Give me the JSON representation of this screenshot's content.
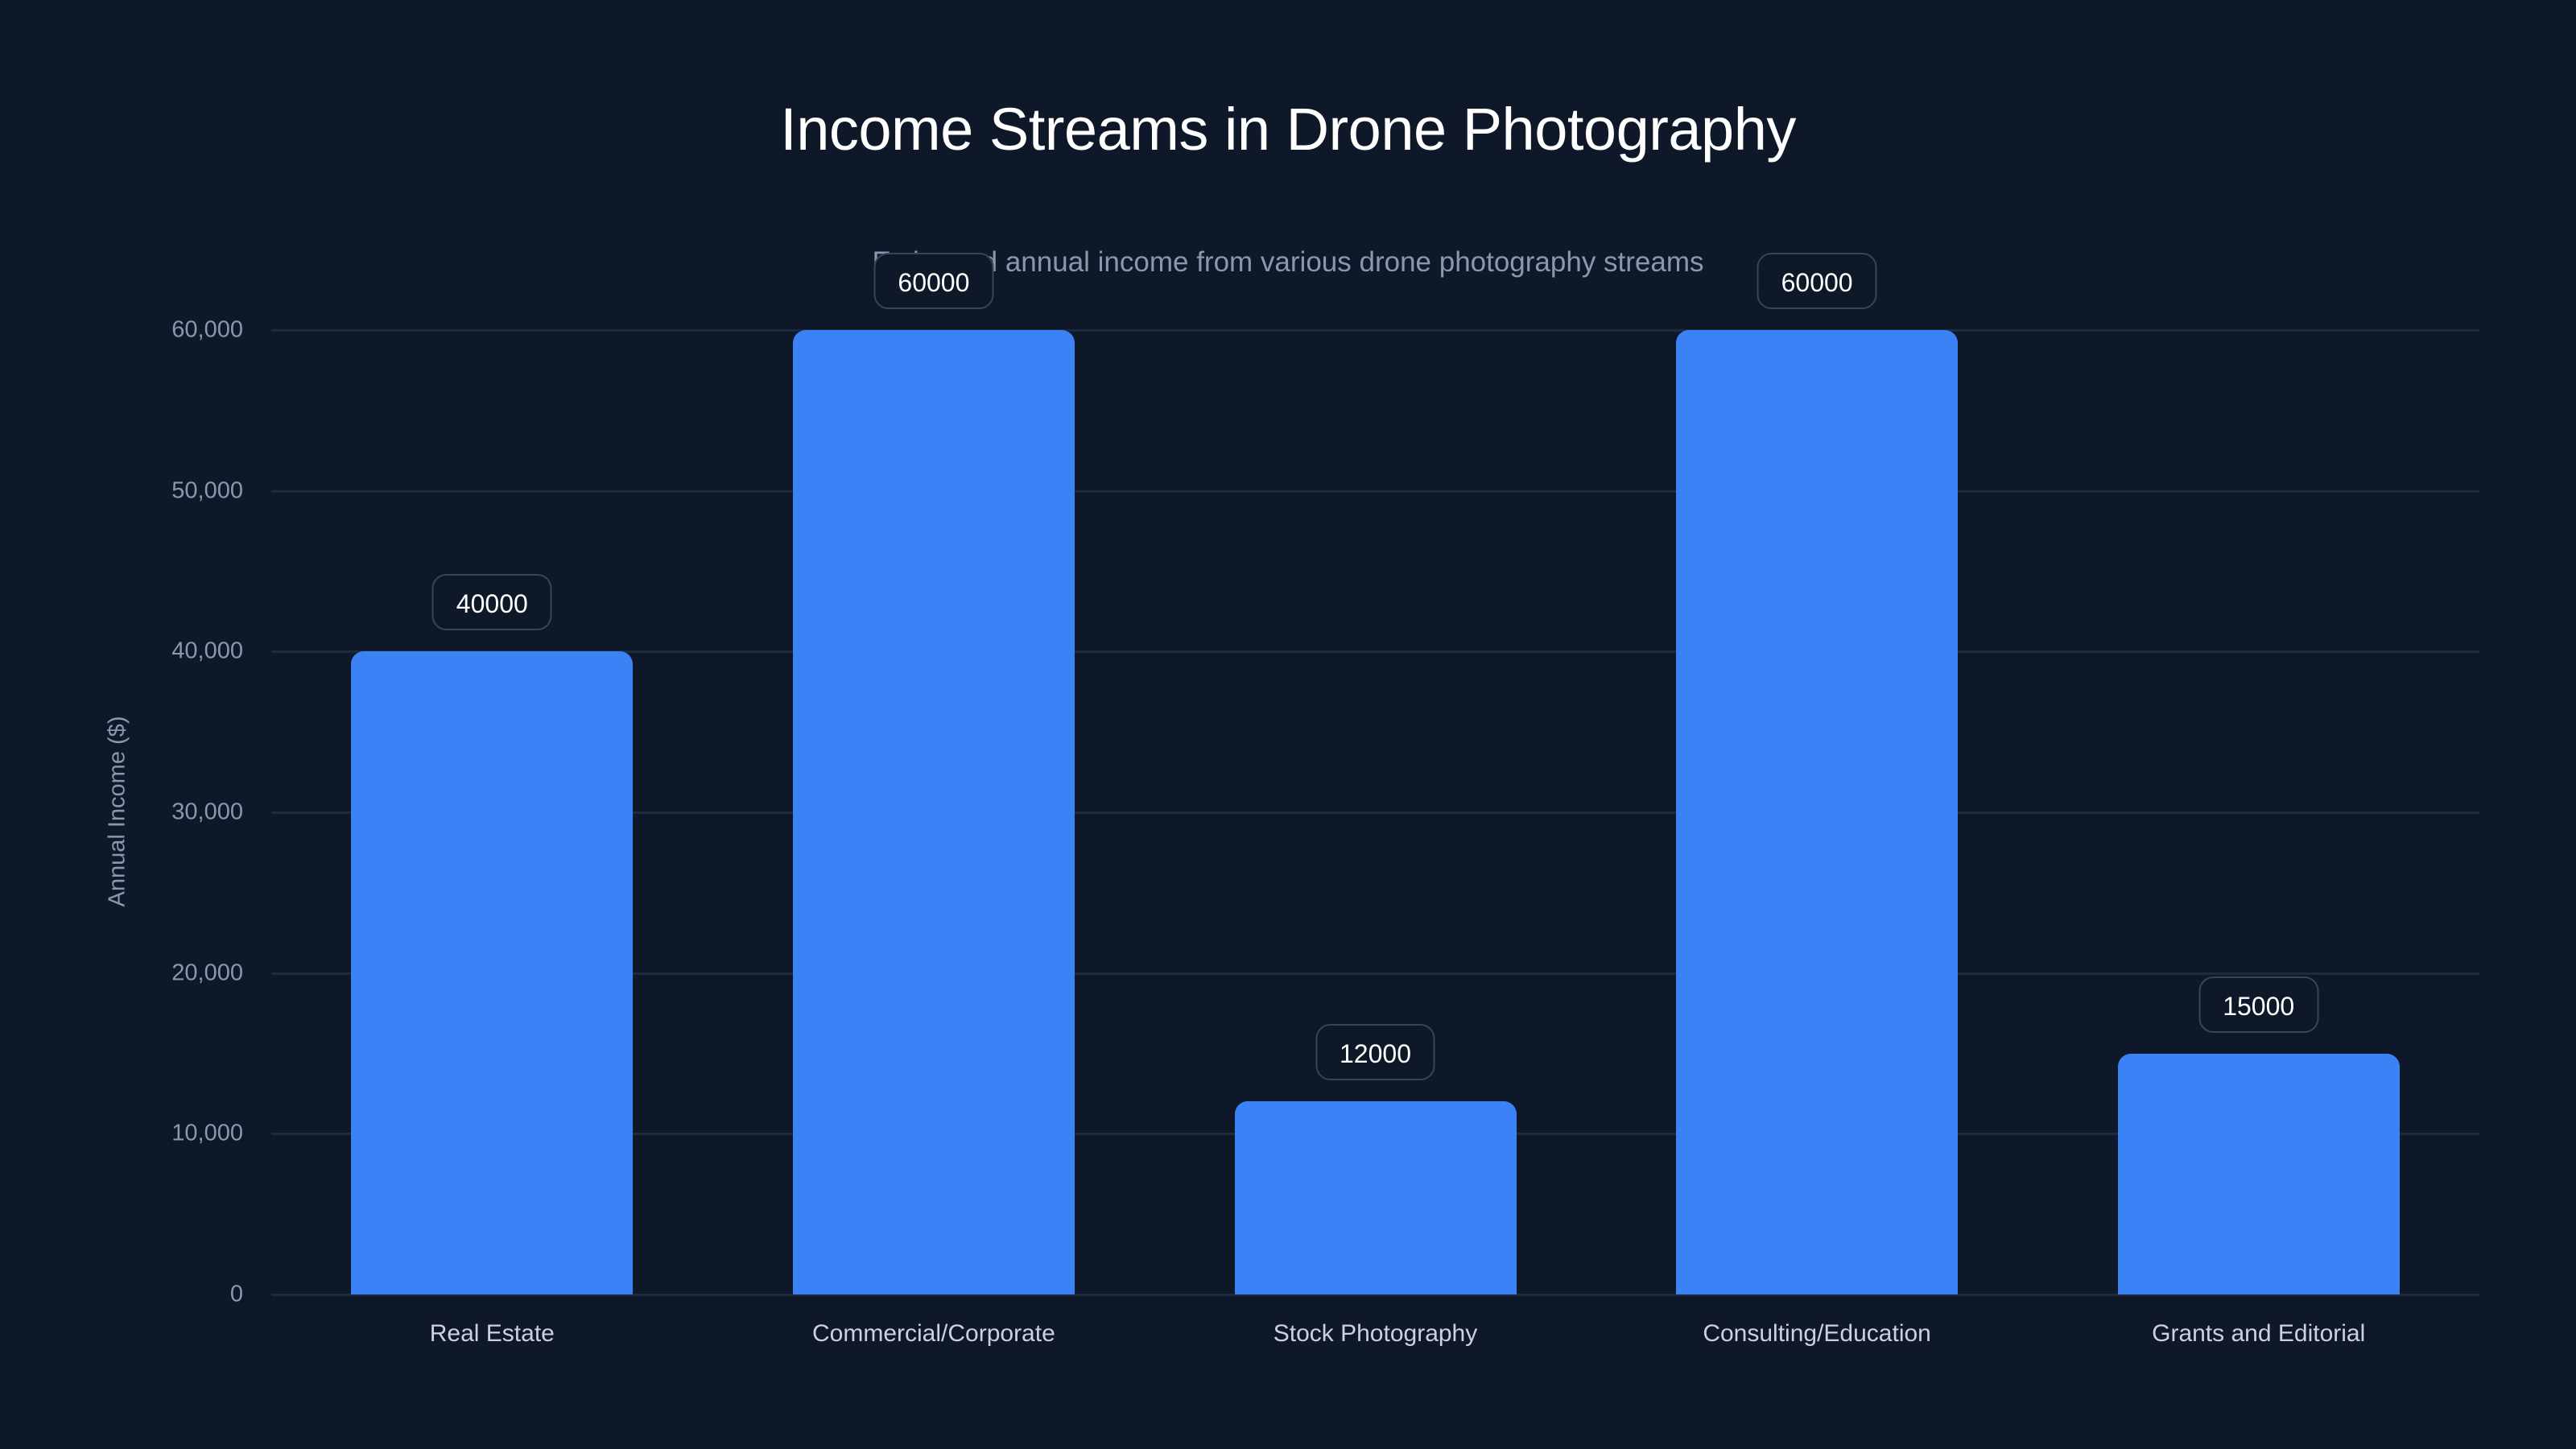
{
  "chart_data": {
    "type": "bar",
    "title": "Income Streams in Drone Photography",
    "subtitle": "Estimated annual income from various drone photography streams",
    "xlabel": "",
    "ylabel": "Annual Income ($)",
    "categories": [
      "Real Estate",
      "Commercial/Corporate",
      "Stock Photography",
      "Consulting/Education",
      "Grants and Editorial"
    ],
    "values": [
      40000,
      60000,
      12000,
      60000,
      15000
    ],
    "value_labels": [
      "40000",
      "60000",
      "12000",
      "60000",
      "15000"
    ],
    "ylim": [
      0,
      60000
    ],
    "yticks": [
      0,
      10000,
      20000,
      30000,
      40000,
      50000,
      60000
    ],
    "ytick_labels": [
      "0",
      "10,000",
      "20,000",
      "30,000",
      "40,000",
      "50,000",
      "60,000"
    ],
    "grid": true,
    "legend": null,
    "colors": {
      "bar": "#3B82F6",
      "background": "#0F1829",
      "grid": "#1E2A3E",
      "axis_text": "#8A97AD",
      "title": "#FFFFFF"
    }
  }
}
